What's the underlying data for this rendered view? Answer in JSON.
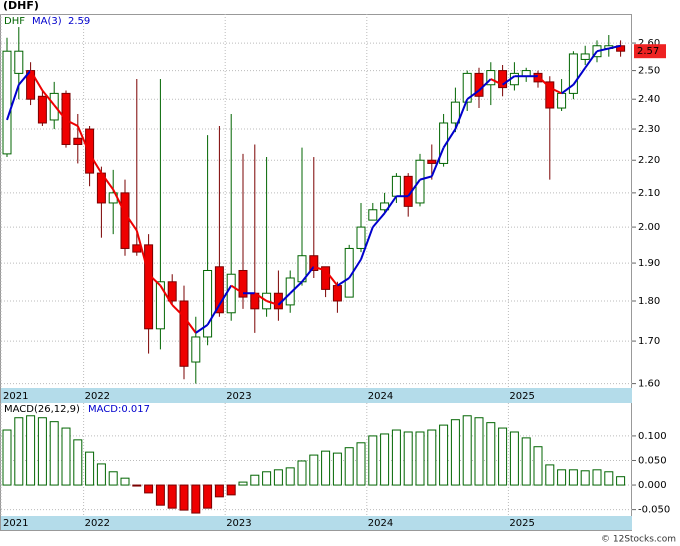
{
  "ticker": "(DHF)",
  "footer": "© 12Stocks.com",
  "chart_data": [
    {
      "type": "candlestick",
      "symbol": "DHF",
      "log_scale": true,
      "grid": true,
      "categories": [
        "2021",
        null,
        null,
        null,
        null,
        null,
        null,
        "2022",
        null,
        null,
        null,
        null,
        null,
        null,
        null,
        null,
        null,
        null,
        null,
        "2023",
        null,
        null,
        null,
        null,
        null,
        null,
        null,
        null,
        null,
        null,
        null,
        "2024",
        null,
        null,
        null,
        null,
        null,
        null,
        null,
        null,
        null,
        null,
        null,
        "2025",
        null,
        null,
        null,
        null,
        null,
        null,
        null,
        null,
        null
      ],
      "open": [
        2.22,
        2.49,
        2.5,
        2.41,
        2.33,
        2.42,
        2.27,
        2.3,
        2.16,
        2.07,
        2.1,
        1.95,
        1.95,
        1.73,
        1.85,
        1.8,
        1.65,
        1.71,
        1.89,
        1.77,
        1.88,
        1.82,
        1.78,
        1.82,
        1.79,
        1.85,
        1.92,
        1.89,
        1.84,
        1.81,
        1.94,
        2.02,
        2.05,
        2.09,
        2.15,
        2.07,
        2.2,
        2.19,
        2.32,
        2.39,
        2.49,
        2.45,
        2.5,
        2.45,
        2.48,
        2.49,
        2.46,
        2.37,
        2.42,
        2.54,
        2.55,
        2.58,
        2.59
      ],
      "high": [
        2.62,
        2.66,
        2.53,
        2.43,
        2.46,
        2.43,
        2.35,
        2.31,
        2.18,
        2.17,
        2.14,
        2.47,
        1.98,
        2.47,
        1.87,
        1.84,
        1.76,
        2.28,
        2.31,
        2.35,
        2.22,
        2.25,
        2.21,
        1.88,
        1.88,
        2.24,
        2.21,
        1.89,
        1.85,
        1.95,
        2.07,
        2.07,
        2.1,
        2.16,
        2.16,
        2.22,
        2.25,
        2.35,
        2.44,
        2.5,
        2.51,
        2.53,
        2.52,
        2.53,
        2.51,
        2.5,
        2.48,
        2.47,
        2.57,
        2.59,
        2.61,
        2.63,
        2.61
      ],
      "low": [
        2.21,
        2.4,
        2.38,
        2.31,
        2.3,
        2.24,
        2.19,
        2.12,
        1.97,
        1.98,
        1.92,
        1.92,
        1.67,
        1.68,
        1.79,
        1.61,
        1.6,
        1.69,
        1.76,
        1.75,
        1.78,
        1.72,
        1.76,
        1.75,
        1.77,
        1.84,
        1.86,
        1.81,
        1.77,
        1.81,
        1.93,
        2.02,
        2.04,
        2.07,
        2.03,
        2.06,
        2.14,
        2.18,
        2.29,
        2.36,
        2.37,
        2.38,
        2.41,
        2.43,
        2.46,
        2.44,
        2.14,
        2.36,
        2.4,
        2.52,
        2.53,
        2.55,
        2.55
      ],
      "close": [
        2.57,
        2.57,
        2.4,
        2.32,
        2.42,
        2.25,
        2.25,
        2.16,
        2.07,
        2.1,
        1.94,
        1.93,
        1.73,
        1.85,
        1.8,
        1.64,
        1.71,
        1.88,
        1.77,
        1.87,
        1.81,
        1.78,
        1.82,
        1.78,
        1.86,
        1.92,
        1.88,
        1.83,
        1.8,
        1.94,
        2.0,
        2.05,
        2.07,
        2.15,
        2.06,
        2.2,
        2.19,
        2.32,
        2.39,
        2.49,
        2.41,
        2.5,
        2.44,
        2.49,
        2.5,
        2.46,
        2.37,
        2.42,
        2.56,
        2.56,
        2.59,
        2.59,
        2.57
      ],
      "series": [
        {
          "name": "MA(3)",
          "up_color": "#0000cc",
          "down_color": "#ee0000",
          "values": [
            2.33,
            2.45,
            2.5,
            2.43,
            2.38,
            2.33,
            2.31,
            2.22,
            2.16,
            2.11,
            2.04,
            1.99,
            1.87,
            1.84,
            1.79,
            1.76,
            1.72,
            1.74,
            1.79,
            1.84,
            1.82,
            1.82,
            1.8,
            1.79,
            1.82,
            1.85,
            1.89,
            1.88,
            1.84,
            1.86,
            1.91,
            2.0,
            2.04,
            2.09,
            2.09,
            2.14,
            2.15,
            2.24,
            2.3,
            2.4,
            2.43,
            2.47,
            2.45,
            2.48,
            2.48,
            2.48,
            2.44,
            2.42,
            2.45,
            2.51,
            2.57,
            2.58,
            2.59
          ]
        }
      ],
      "ylim": [
        1.59,
        2.71
      ],
      "yticks": [
        {
          "value": 2.6,
          "label": "2.60"
        },
        {
          "value": 2.5,
          "label": "2.50"
        },
        {
          "value": 2.4,
          "label": "2.40"
        },
        {
          "value": 2.3,
          "label": "2.30"
        },
        {
          "value": 2.2,
          "label": "2.20"
        },
        {
          "value": 2.1,
          "label": "2.10"
        },
        {
          "value": 2.0,
          "label": "2.00"
        },
        {
          "value": 1.9,
          "label": "1.90"
        },
        {
          "value": 1.8,
          "label": "1.80"
        },
        {
          "value": 1.7,
          "label": "1.70"
        },
        {
          "value": 1.6,
          "label": "1.60"
        }
      ]
    },
    {
      "type": "macd",
      "title": "MACD(26,12,9)",
      "value_label": "MACD:0.017",
      "grid": true,
      "values": [
        0.112,
        0.137,
        0.141,
        0.137,
        0.129,
        0.116,
        0.092,
        0.067,
        0.043,
        0.027,
        0.014,
        -0.002,
        -0.016,
        -0.041,
        -0.047,
        -0.051,
        -0.057,
        -0.047,
        -0.024,
        -0.02,
        0.006,
        0.02,
        0.027,
        0.031,
        0.035,
        0.049,
        0.061,
        0.069,
        0.065,
        0.076,
        0.086,
        0.1,
        0.104,
        0.112,
        0.108,
        0.108,
        0.112,
        0.122,
        0.133,
        0.141,
        0.137,
        0.127,
        0.116,
        0.108,
        0.096,
        0.078,
        0.041,
        0.031,
        0.031,
        0.029,
        0.031,
        0.027,
        0.017
      ],
      "ylim": [
        -0.063,
        0.167
      ],
      "yticks": [
        {
          "value": 0.1,
          "label": "0.100"
        },
        {
          "value": 0.05,
          "label": "0.050"
        },
        {
          "value": 0,
          "label": "0.000"
        },
        {
          "value": -0.05,
          "label": "-0.050"
        }
      ]
    }
  ]
}
